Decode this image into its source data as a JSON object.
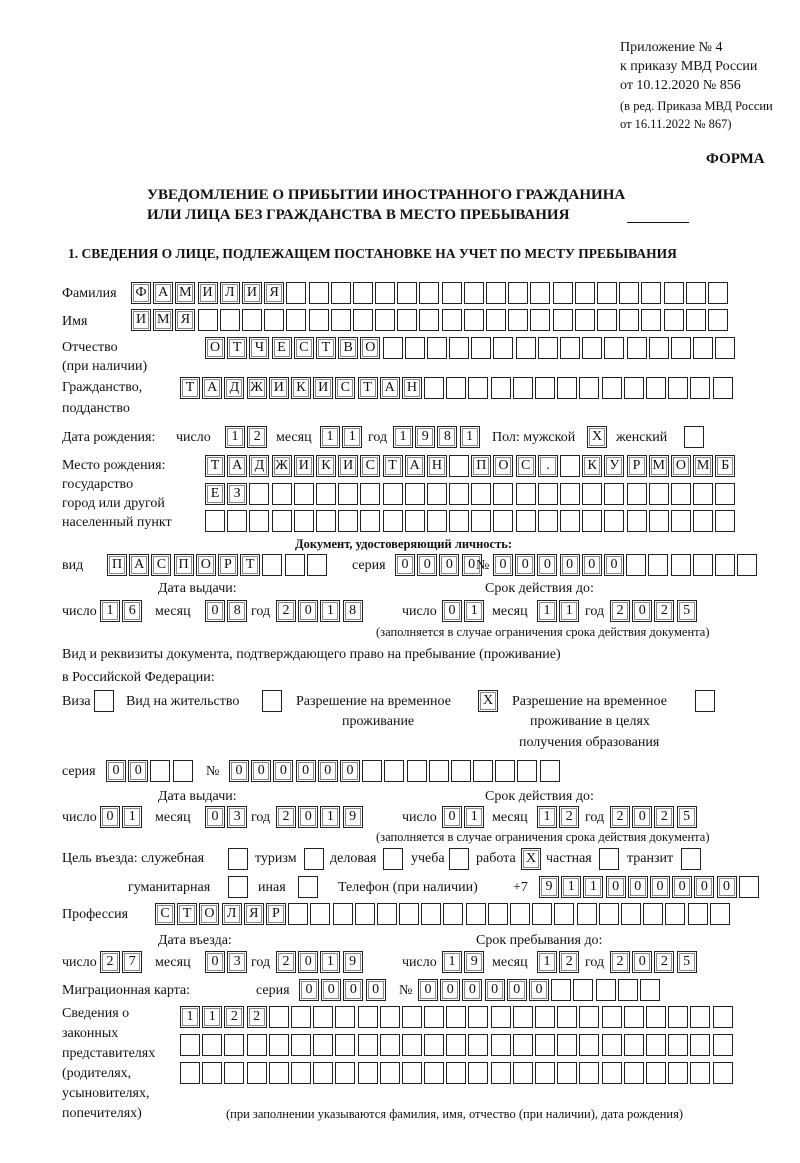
{
  "header": {
    "appendix": "Приложение № 4",
    "order": "к приказу МВД России",
    "order_date": "от 10.12.2020 № 856",
    "edition": "(в ред. Приказа МВД России",
    "edition_date": "от 16.11.2022 № 867)",
    "form_label": "ФОРМА",
    "title_line1": "УВЕДОМЛЕНИЕ О ПРИБЫТИИ ИНОСТРАННОГО ГРАЖДАНИНА",
    "title_line2": "ИЛИ ЛИЦА БЕЗ ГРАЖДАНСТВА В МЕСТО ПРЕБЫВАНИЯ",
    "section1": "1. СВЕДЕНИЯ О ЛИЦЕ, ПОДЛЕЖАЩЕМ ПОСТАНОВКЕ НА УЧЕТ ПО МЕСТУ ПРЕБЫВАНИЯ"
  },
  "person": {
    "surname_label": "Фамилия",
    "surname": "ФАМИЛИЯ",
    "name_label": "Имя",
    "name": "ИМЯ",
    "patronymic_label": "Отчество",
    "patronymic_note": "(при наличии)",
    "patronymic": "ОТЧЕСТВО",
    "citizenship_label1": "Гражданство,",
    "citizenship_label2": "подданство",
    "citizenship": "ТАДЖИКИСТАН",
    "birth_label": "Дата рождения:",
    "day_label": "число",
    "month_label": "месяц",
    "year_label": "год",
    "birth_day": "12",
    "birth_month": "11",
    "birth_year": "1981",
    "sex_label": "Пол: мужской",
    "female_label": "женский",
    "male_mark": "X",
    "female_mark": "",
    "birthplace_label1": "Место рождения:",
    "birthplace_label2": "государство",
    "birthplace_label3": "город или другой",
    "birthplace_label4": "населенный пункт",
    "birthplace_line1": "ТАДЖИКИСТАН ПОС. КУРМОМБ",
    "birthplace_line2": "ЕЗ",
    "birthplace_line3": ""
  },
  "id_document": {
    "heading": "Документ, удостоверяющий личность:",
    "type_label": "вид",
    "type": "ПАСПОРТ",
    "series_label": "серия",
    "series": "0000",
    "number_label": "№",
    "number": "000000",
    "issue_label": "Дата выдачи:",
    "valid_label": "Срок действия до:",
    "day_label": "число",
    "month_label": "месяц",
    "year_label": "год",
    "issue_day": "16",
    "issue_month": "08",
    "issue_year": "2018",
    "valid_day": "01",
    "valid_month": "11",
    "valid_year": "2025",
    "valid_note": "(заполняется в случае ограничения срока действия документа)"
  },
  "stay_document": {
    "heading1": "Вид и реквизиты документа, подтверждающего право на пребывание (проживание)",
    "heading2": "в Российской Федерации:",
    "visa_label": "Виза",
    "visa_mark": "",
    "residence_label": "Вид на жительство",
    "residence_mark": "",
    "trp_label1": "Разрешение на временное",
    "trp_label2": "проживание",
    "trp_mark": "X",
    "trp_edu_label1": "Разрешение на временное",
    "trp_edu_label2": "проживание в целях",
    "trp_edu_label3": "получения образования",
    "trp_edu_mark": "",
    "series_label": "серия",
    "series": "00",
    "number_label": "№",
    "number": "000000",
    "issue_label": "Дата выдачи:",
    "valid_label": "Срок действия до:",
    "day_label": "число",
    "month_label": "месяц",
    "year_label": "год",
    "issue_day": "01",
    "issue_month": "03",
    "issue_year": "2019",
    "valid_day": "01",
    "valid_month": "12",
    "valid_year": "2025",
    "valid_note": "(заполняется в случае ограничения срока действия документа)"
  },
  "purpose": {
    "label": "Цель въезда: служебная",
    "official_mark": "",
    "tourism_label": "туризм",
    "tourism_mark": "",
    "business_label": "деловая",
    "business_mark": "",
    "study_label": "учеба",
    "study_mark": "",
    "work_label": "работа",
    "work_mark": "X",
    "private_label": "частная",
    "private_mark": "",
    "transit_label": "транзит",
    "transit_mark": "",
    "humanitarian_label": "гуманитарная",
    "humanitarian_mark": "",
    "other_label": "иная",
    "other_mark": "",
    "phone_label": "Телефон (при наличии)",
    "phone_prefix": "+7",
    "phone": "911000000"
  },
  "profession": {
    "label": "Профессия",
    "value": "СТОЛЯР"
  },
  "entry": {
    "entry_label": "Дата въезда:",
    "stay_label": "Срок пребывания до:",
    "day_label": "число",
    "month_label": "месяц",
    "year_label": "год",
    "entry_day": "27",
    "entry_month": "03",
    "entry_year": "2019",
    "stay_day": "19",
    "stay_month": "12",
    "stay_year": "2025"
  },
  "migration_card": {
    "label": "Миграционная карта:",
    "series_label": "серия",
    "series": "0000",
    "number_label": "№",
    "number": "000000"
  },
  "representatives": {
    "label1": "Сведения о",
    "label2": "законных",
    "label3": "представителях",
    "label4": "(родителях,",
    "label5": "усыновителях,",
    "label6": "попечителях)",
    "line1": "1122",
    "line2": "",
    "line3": "",
    "note": "(при заполнении указываются фамилия, имя, отчество (при наличии), дата рождения)"
  }
}
